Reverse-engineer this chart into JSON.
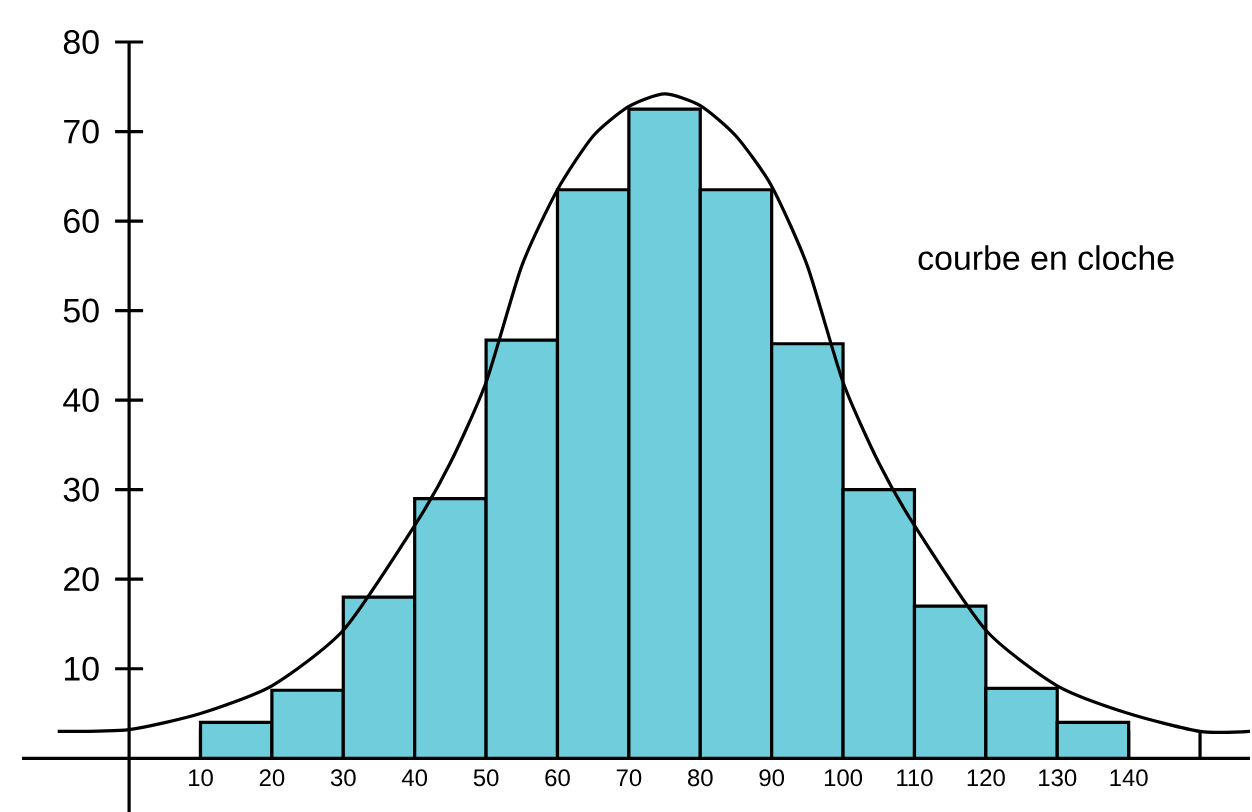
{
  "chart_data": {
    "type": "histogram",
    "bins": [
      10,
      20,
      30,
      40,
      50,
      60,
      70,
      80,
      90,
      100,
      110,
      120,
      130,
      140
    ],
    "values": [
      4,
      7.6,
      18,
      29,
      46.7,
      63.5,
      72.5,
      63.5,
      46.3,
      30,
      17,
      7.8,
      4
    ],
    "color": "#6fcddc",
    "series": [
      {
        "type": "line",
        "color": "#000000",
        "x": [
          -10,
          0,
          10,
          20,
          30,
          40,
          45,
          50,
          55,
          60,
          65,
          70,
          75,
          80,
          85,
          90,
          95,
          100,
          105,
          110,
          120,
          130,
          140,
          150,
          157
        ],
        "values": [
          3,
          3.2,
          5,
          8.1,
          14.3,
          26,
          33,
          42,
          55,
          63.5,
          69.5,
          72.8,
          74.2,
          72.9,
          69.5,
          63.9,
          55,
          42,
          33,
          26,
          14.3,
          8.1,
          5,
          3,
          3
        ]
      }
    ],
    "xlim": [
      -15,
      157
    ],
    "ylim": [
      -6,
      80
    ],
    "xticks": [
      10,
      20,
      30,
      40,
      50,
      60,
      70,
      80,
      90,
      100,
      110,
      120,
      130,
      140,
      {
        "value": 150,
        "label": null
      }
    ],
    "yticks": [
      10,
      20,
      30,
      40,
      50,
      60,
      70,
      80
    ],
    "annotations": [
      "courbe en cloche"
    ]
  }
}
